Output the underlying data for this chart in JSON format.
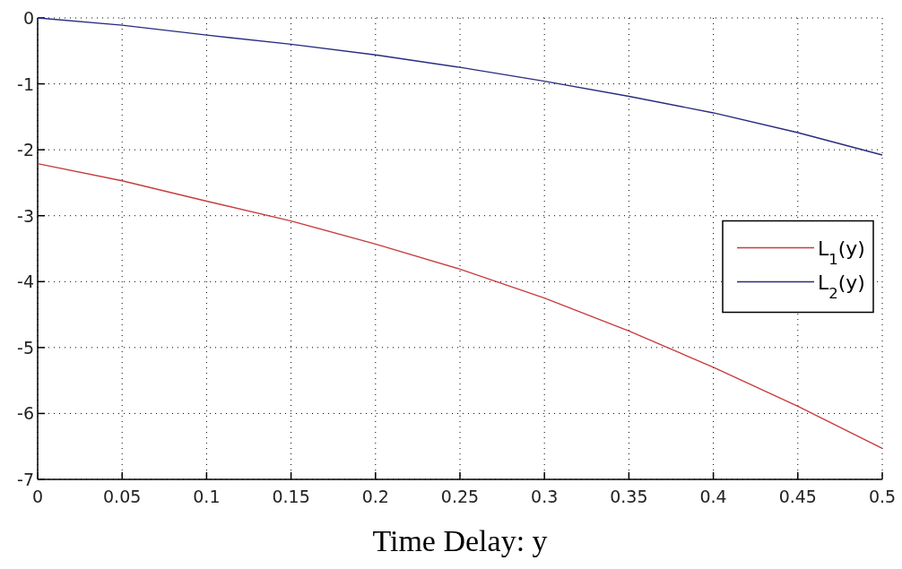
{
  "chart_data": {
    "type": "line",
    "xlabel": "Time Delay: y",
    "x": [
      0,
      0.05,
      0.1,
      0.15,
      0.2,
      0.25,
      0.3,
      0.35,
      0.4,
      0.45,
      0.5
    ],
    "series": [
      {
        "name": "L$_{1}$(y)",
        "color": "#c83c3c",
        "values": [
          -2.21,
          -2.47,
          -2.78,
          -3.08,
          -3.43,
          -3.81,
          -4.25,
          -4.75,
          -5.3,
          -5.89,
          -6.53
        ]
      },
      {
        "name": "L$_{2}$(y)",
        "color": "#2a2a80",
        "values": [
          0,
          -0.11,
          -0.26,
          -0.4,
          -0.56,
          -0.75,
          -0.96,
          -1.19,
          -1.44,
          -1.74,
          -2.08
        ]
      }
    ],
    "xlim": [
      0,
      0.5
    ],
    "xticks": [
      0,
      0.05,
      0.1,
      0.15,
      0.2,
      0.25,
      0.3,
      0.35,
      0.4,
      0.45,
      0.5
    ],
    "ylim": [
      -7,
      0
    ],
    "yticks": [
      -7,
      -6,
      -5,
      -4,
      -3,
      -2,
      -1,
      0
    ],
    "grid": true,
    "legend": "right",
    "line_style": "solid"
  }
}
